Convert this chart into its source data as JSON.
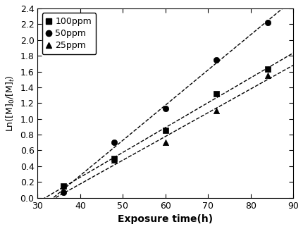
{
  "series": [
    {
      "label": "100ppm",
      "marker": "s",
      "x": [
        36,
        48,
        60,
        72,
        84
      ],
      "y": [
        0.15,
        0.5,
        0.85,
        1.32,
        1.63
      ],
      "color": "black"
    },
    {
      "label": "50ppm",
      "marker": "o",
      "x": [
        36,
        48,
        60,
        72,
        84
      ],
      "y": [
        0.07,
        0.7,
        1.13,
        1.75,
        2.22
      ],
      "color": "black"
    },
    {
      "label": "25ppm",
      "marker": "^",
      "x": [
        48,
        60,
        72,
        84
      ],
      "y": [
        0.48,
        0.7,
        1.1,
        1.55
      ],
      "color": "black"
    }
  ],
  "xlabel": "Exposure time(h)",
  "ylabel": "Ln([M]0/[M]t)",
  "xlim": [
    30,
    90
  ],
  "ylim": [
    0,
    2.4
  ],
  "xticks": [
    30,
    40,
    50,
    60,
    70,
    80,
    90
  ],
  "yticks": [
    0.0,
    0.2,
    0.4,
    0.6,
    0.8,
    1.0,
    1.2,
    1.4,
    1.6,
    1.8,
    2.0,
    2.2,
    2.4
  ],
  "legend_loc": "upper left",
  "background_color": "#ffffff",
  "line_style": "--",
  "marker_size": 6,
  "line_width": 1.0,
  "fit_x_start": 30,
  "fit_x_end": 90
}
